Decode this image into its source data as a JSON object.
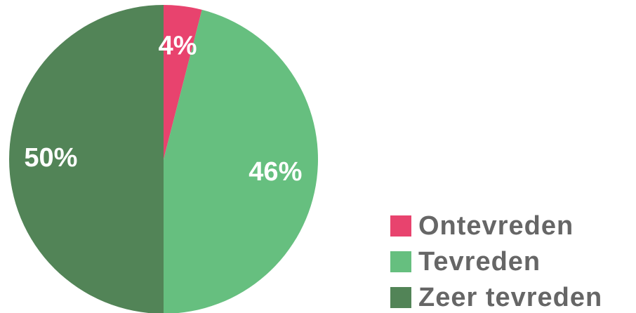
{
  "chart_data": {
    "type": "pie",
    "categories": [
      "Ontevreden",
      "Tevreden",
      "Zeer tevreden"
    ],
    "values": [
      4,
      46,
      50
    ],
    "value_labels": [
      "4%",
      "46%",
      "50%"
    ],
    "colors": [
      "#e8436e",
      "#66bf7f",
      "#528457"
    ],
    "legend": "bottom-right"
  }
}
